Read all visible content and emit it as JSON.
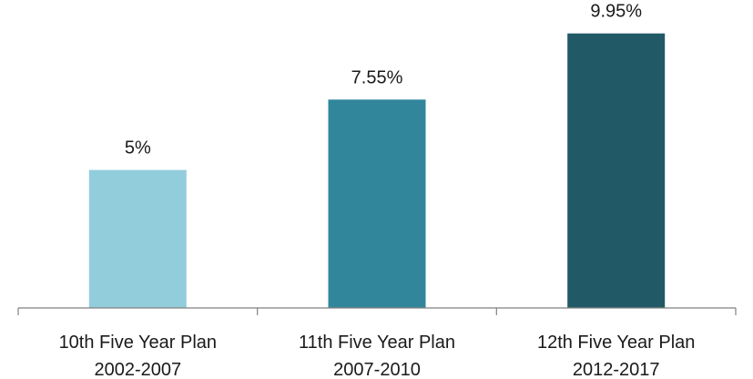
{
  "chart_data": {
    "type": "bar",
    "categories": [
      [
        "10th Five Year Plan",
        "2002-2007"
      ],
      [
        "11th Five Year Plan",
        "2007-2010"
      ],
      [
        "12th Five Year Plan",
        "2012-2017"
      ]
    ],
    "values": [
      5,
      7.55,
      9.95
    ],
    "data_labels": [
      "5%",
      "7.55%",
      "9.95%"
    ],
    "colors": [
      "#92cddc",
      "#31869b",
      "#215967"
    ],
    "axis_color": "#808080",
    "title": "",
    "xlabel": "",
    "ylabel": "",
    "ylim": [
      0,
      10.5
    ],
    "grid": false,
    "legend": "none"
  }
}
